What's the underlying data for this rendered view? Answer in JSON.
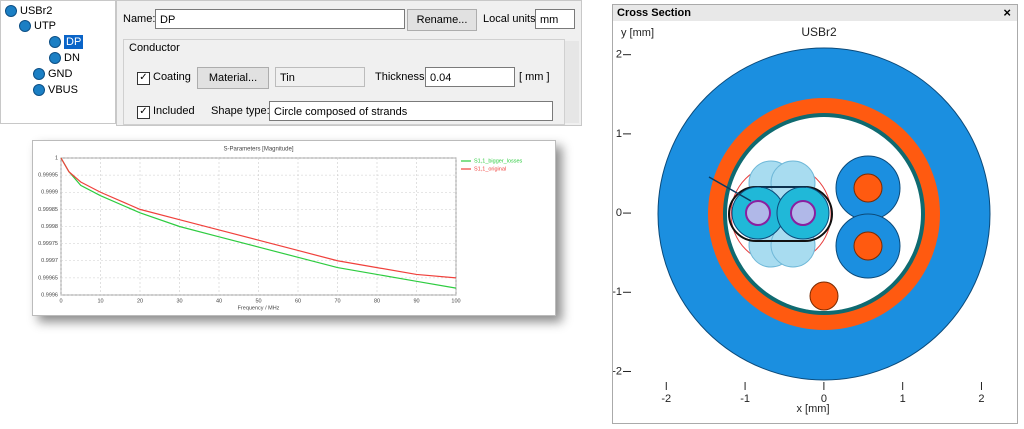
{
  "tree": {
    "items": [
      {
        "label": "USBr2"
      },
      {
        "label": "UTP"
      },
      {
        "label": "DP"
      },
      {
        "label": "DN"
      },
      {
        "label": "GND"
      },
      {
        "label": "VBUS"
      }
    ]
  },
  "properties": {
    "name_label": "Name:",
    "name_value": "DP",
    "rename": "Rename...",
    "local_units_label": "Local units:",
    "local_units": "mm",
    "group": "Conductor",
    "coating": "Coating",
    "material": "Material...",
    "material_value": "Tin",
    "thickness_label": "Thickness:",
    "thickness": "0.04",
    "thickness_unit": "[ mm ]",
    "included": "Included",
    "shape_type_label": "Shape type:",
    "shape_type": "Circle composed of strands"
  },
  "cross_section_window": {
    "title": "Cross Section",
    "close": "×"
  },
  "chart_data": [
    {
      "type": "line",
      "title": "S-Parameters [Magnitude]",
      "x_label": "Frequency / MHz",
      "x": [
        0,
        2,
        5,
        10,
        20,
        30,
        40,
        50,
        60,
        70,
        80,
        90,
        100
      ],
      "series": [
        {
          "name": "S1,1_bigger_losses",
          "color": "#2ecc40",
          "values": [
            1,
            0.99996,
            0.99992,
            0.99989,
            0.99984,
            0.9998,
            0.99977,
            0.99974,
            0.99971,
            0.99968,
            0.99966,
            0.99964,
            0.99962
          ]
        },
        {
          "name": "S1,1_original",
          "color": "#f0413c",
          "values": [
            1,
            0.99996,
            0.99993,
            0.9999,
            0.99985,
            0.99982,
            0.99979,
            0.99976,
            0.99973,
            0.9997,
            0.99968,
            0.99966,
            0.99965
          ]
        }
      ],
      "xlim": [
        0,
        100
      ],
      "xticks": [
        0,
        10,
        20,
        30,
        40,
        50,
        60,
        70,
        80,
        90,
        100
      ],
      "ylim": [
        0.9996,
        1
      ],
      "yticks": [
        0.9996,
        0.99965,
        0.9997,
        0.99975,
        0.9998,
        0.99985,
        0.9999,
        0.99995,
        1
      ],
      "grid": true
    },
    {
      "type": "cross-section",
      "title": "USBr2",
      "x_label": "x [mm]",
      "y_label": "y [mm]",
      "xlim": [
        -2.6,
        2.4
      ],
      "xticks": [
        -2,
        -1,
        0,
        1,
        2
      ],
      "ylim": [
        -2.6,
        2.4
      ],
      "yticks": [
        -2,
        -1,
        0,
        1,
        2
      ]
    }
  ]
}
